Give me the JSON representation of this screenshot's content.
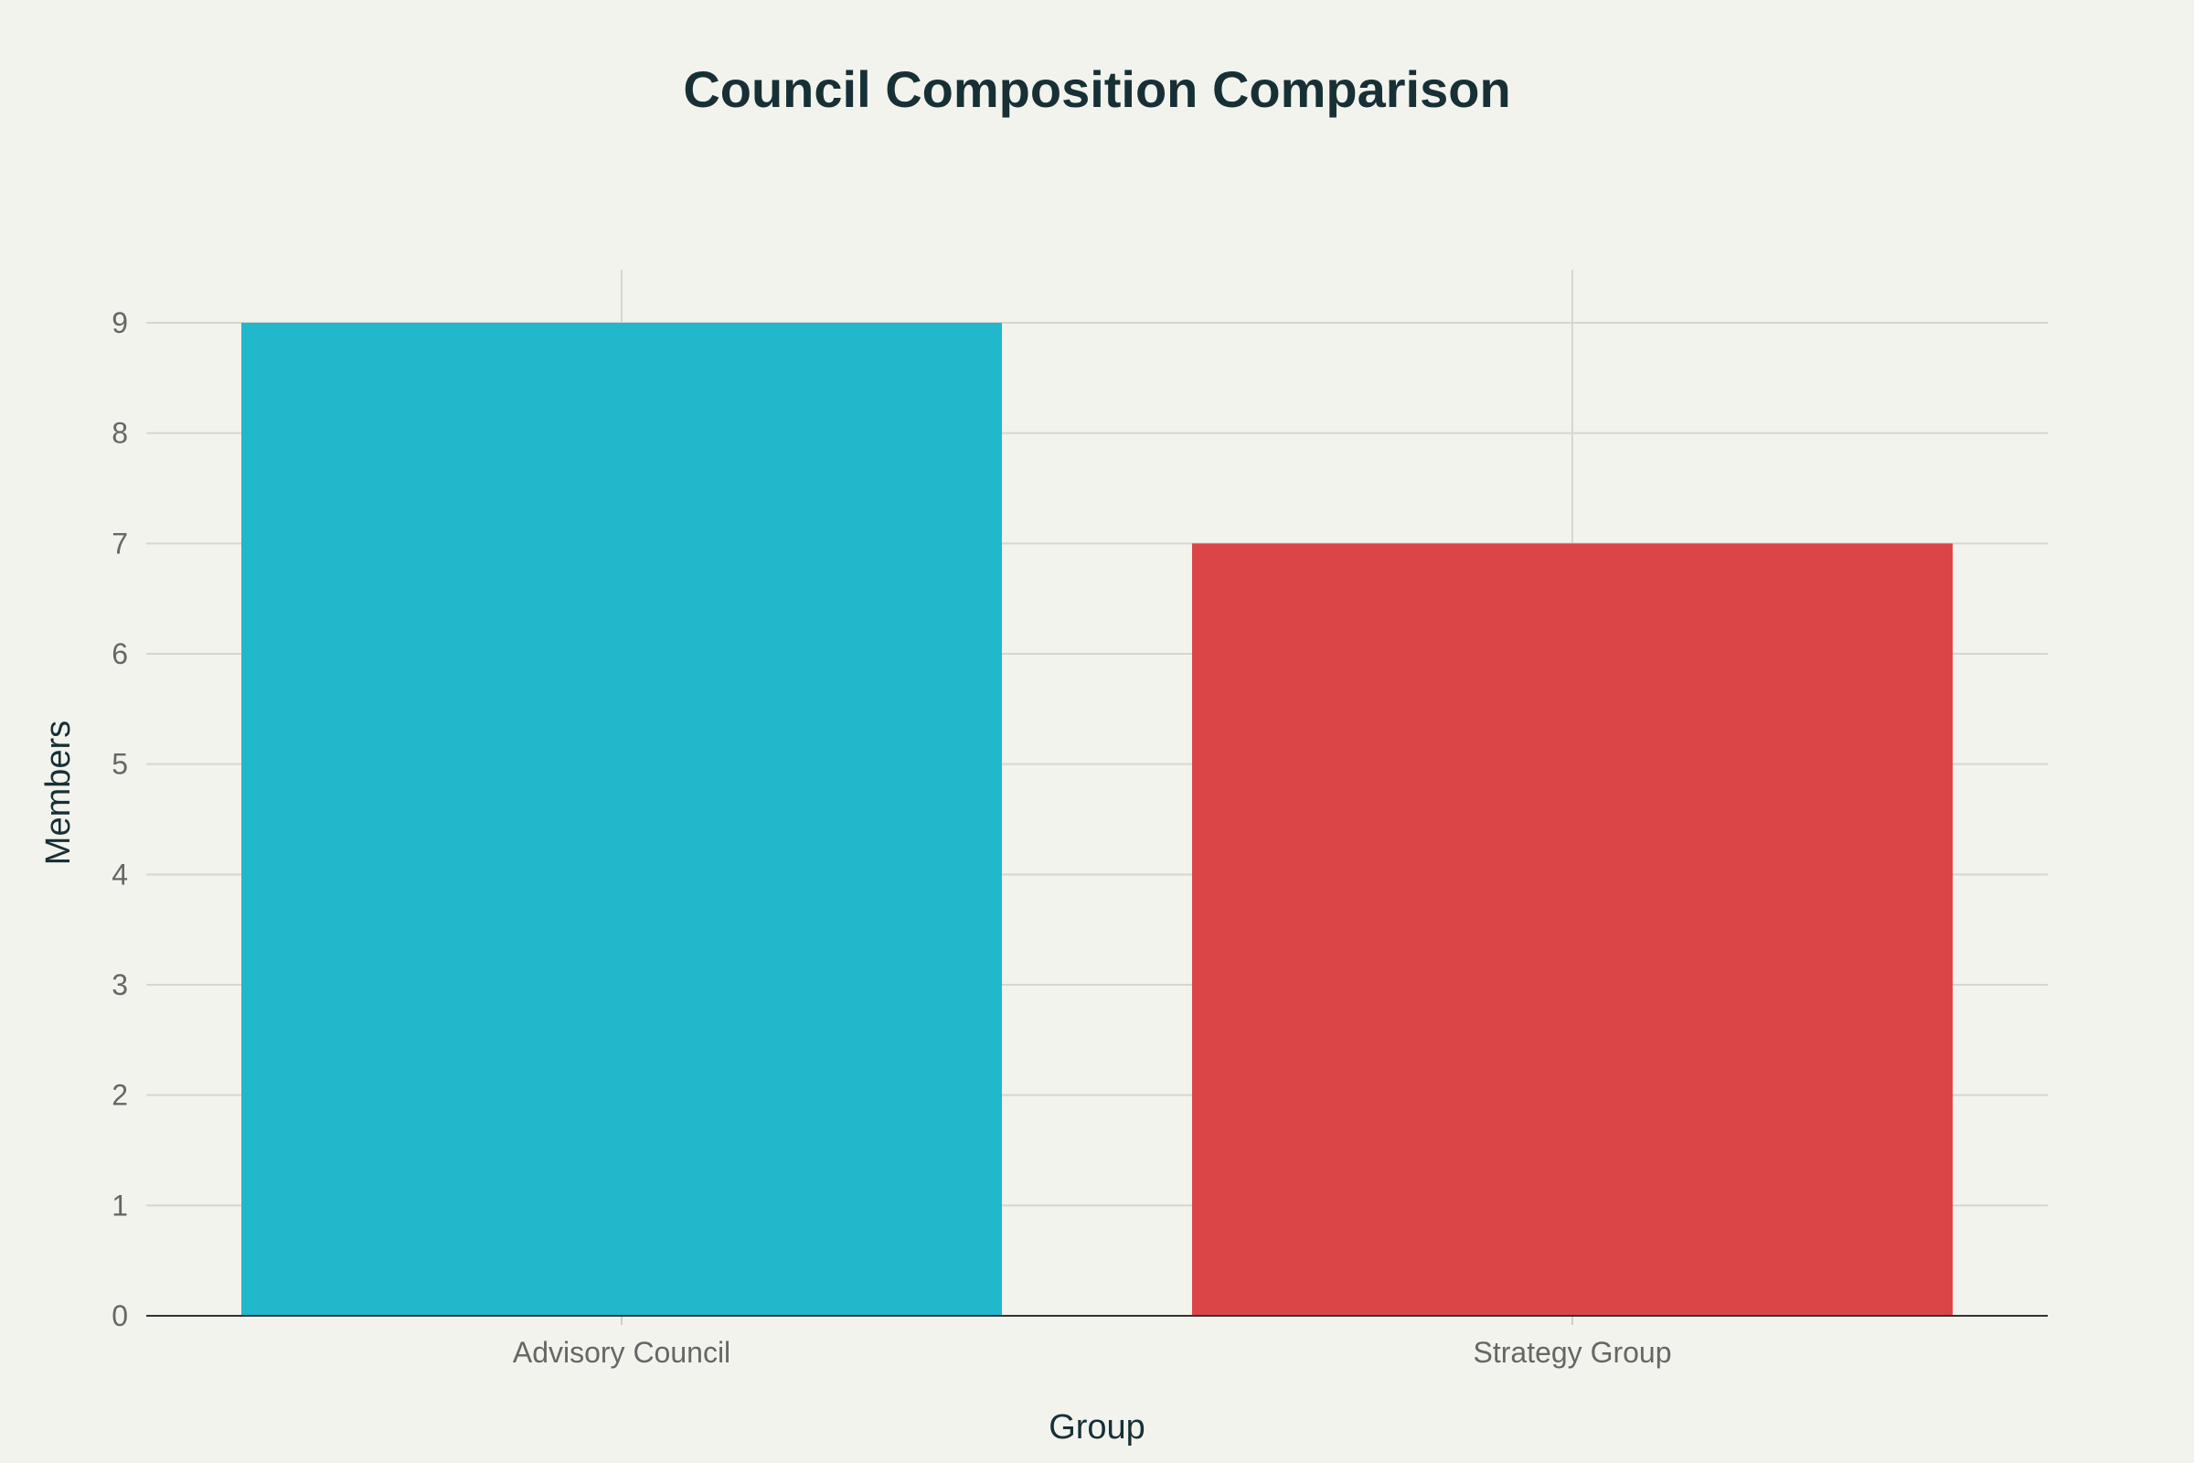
{
  "chart_data": {
    "type": "bar",
    "title": "Council Composition Comparison",
    "xlabel": "Group",
    "ylabel": "Members",
    "categories": [
      "Advisory Council",
      "Strategy Group"
    ],
    "values": [
      9,
      7
    ],
    "colors": [
      "#21b8cc",
      "#db4548"
    ],
    "ylim": [
      0,
      9
    ],
    "yticks": [
      0,
      1,
      2,
      3,
      4,
      5,
      6,
      7,
      8,
      9
    ],
    "grid": true,
    "legend": "none"
  }
}
